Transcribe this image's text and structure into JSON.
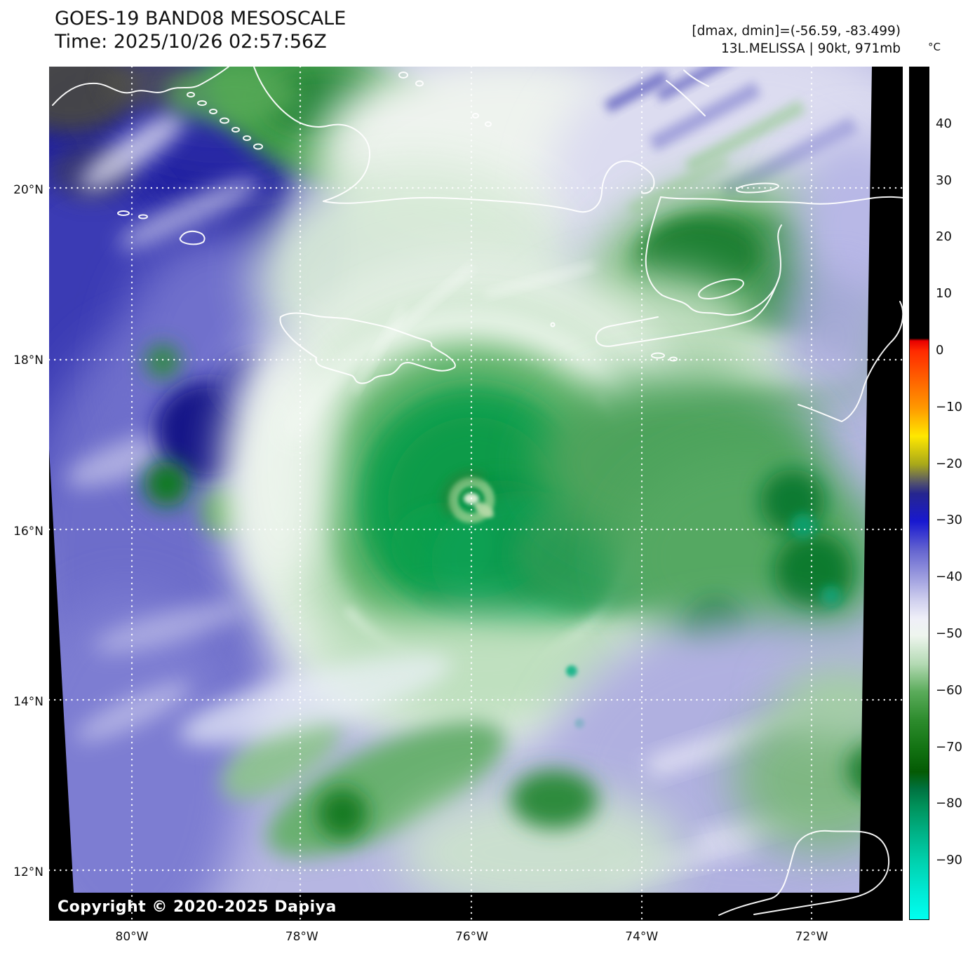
{
  "header": {
    "title_line1": "GOES-19 BAND08 MESOSCALE",
    "title_line2": "Time: 2025/10/26 02:57:56Z",
    "info_line1": "[dmax, dmin]=(-56.59, -83.499)",
    "info_line2": "13L.MELISSA | 90kt, 971mb"
  },
  "colorbar": {
    "unit_label": "°C",
    "tick_labels": [
      "40",
      "30",
      "20",
      "10",
      "0",
      "−10",
      "−20",
      "−30",
      "−40",
      "−50",
      "−60",
      "−70",
      "−80",
      "−90"
    ],
    "tick_values": [
      40,
      30,
      20,
      10,
      0,
      -10,
      -20,
      -30,
      -40,
      -50,
      -60,
      -70,
      -80,
      -90
    ],
    "scale_max_c": 50,
    "scale_min_c": -100,
    "key_colors": {
      "warm_clear": "#000000",
      "0C": "#ff1a00",
      "-10C": "#ff9900",
      "-15C": "#ffe800",
      "-30C": "#1818d0",
      "-40C": "#a0a0e0",
      "-48C": "#f2f2fa",
      "-60C": "#5aab5a",
      "-72C": "#0a5f0a",
      "-80C": "#00915a",
      "-95C": "#00e9d4"
    }
  },
  "map": {
    "lat_tick_labels": [
      "20°N",
      "18°N",
      "16°N",
      "14°N",
      "12°N"
    ],
    "lon_tick_labels": [
      "80°W",
      "78°W",
      "76°W",
      "74°W",
      "72°W"
    ],
    "copyright": "Copyright © 2020-2025 Dapiya",
    "features": {
      "storm_label": "13L.MELISSA",
      "storm_intensity": "90kt, 971mb",
      "eye_position_note": "eye near 76°W 16.3°N"
    }
  }
}
